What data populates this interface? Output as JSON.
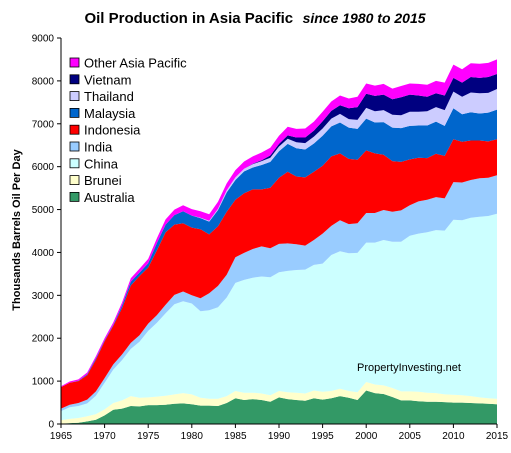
{
  "chart_data": {
    "type": "area",
    "stacked": true,
    "title": "Oil Production in Asia Pacific",
    "subtitle": "since 1980 to 2015",
    "ylabel": "Thousands Barrels Oil Per Day",
    "xlabel": "",
    "watermark": "PropertyInvesting.net",
    "xlim": [
      1965,
      2015
    ],
    "ylim": [
      0,
      9000
    ],
    "x_ticks": [
      "1965",
      "1970",
      "1975",
      "1980",
      "1985",
      "1990",
      "1995",
      "2000",
      "2005",
      "2010",
      "2015"
    ],
    "y_ticks": [
      "0",
      "1000",
      "2000",
      "3000",
      "4000",
      "5000",
      "6000",
      "7000",
      "8000",
      "9000"
    ],
    "grid": false,
    "legend_position": "top-left",
    "x": [
      1965,
      1966,
      1967,
      1968,
      1969,
      1970,
      1971,
      1972,
      1973,
      1974,
      1975,
      1976,
      1977,
      1978,
      1979,
      1980,
      1981,
      1982,
      1983,
      1984,
      1985,
      1986,
      1987,
      1988,
      1989,
      1990,
      1991,
      1992,
      1993,
      1994,
      1995,
      1996,
      1997,
      1998,
      1999,
      2000,
      2001,
      2002,
      2003,
      2004,
      2005,
      2006,
      2007,
      2008,
      2009,
      2010,
      2011,
      2012,
      2013,
      2014,
      2015
    ],
    "series": [
      {
        "name": "Australia",
        "color": "#339966",
        "values": [
          10,
          20,
          30,
          60,
          100,
          200,
          330,
          360,
          420,
          410,
          440,
          440,
          450,
          470,
          480,
          460,
          430,
          430,
          420,
          490,
          600,
          560,
          580,
          560,
          520,
          620,
          580,
          560,
          540,
          600,
          570,
          600,
          650,
          610,
          560,
          780,
          720,
          700,
          630,
          550,
          550,
          530,
          520,
          520,
          510,
          500,
          500,
          490,
          480,
          470,
          460
        ]
      },
      {
        "name": "Brunei",
        "color": "#ffffcc",
        "values": [
          80,
          100,
          110,
          120,
          130,
          140,
          160,
          190,
          230,
          200,
          180,
          200,
          210,
          220,
          240,
          230,
          180,
          160,
          170,
          160,
          170,
          170,
          150,
          150,
          150,
          150,
          160,
          170,
          170,
          180,
          180,
          170,
          170,
          160,
          180,
          200,
          200,
          200,
          210,
          210,
          210,
          220,
          210,
          200,
          180,
          180,
          170,
          160,
          140,
          130,
          130
        ]
      },
      {
        "name": "China",
        "color": "#ccffff",
        "values": [
          210,
          270,
          280,
          300,
          430,
          620,
          780,
          940,
          1100,
          1310,
          1550,
          1720,
          1920,
          2100,
          2140,
          2120,
          2020,
          2060,
          2130,
          2300,
          2520,
          2630,
          2680,
          2730,
          2750,
          2770,
          2830,
          2860,
          2890,
          2930,
          2990,
          3170,
          3210,
          3210,
          3250,
          3250,
          3310,
          3390,
          3410,
          3490,
          3630,
          3690,
          3740,
          3800,
          3820,
          4080,
          4080,
          4160,
          4210,
          4250,
          4310
        ]
      },
      {
        "name": "India",
        "color": "#99ccff",
        "values": [
          60,
          60,
          70,
          90,
          100,
          110,
          120,
          130,
          140,
          150,
          170,
          180,
          200,
          220,
          230,
          190,
          300,
          400,
          500,
          530,
          600,
          630,
          670,
          700,
          680,
          660,
          640,
          600,
          560,
          580,
          700,
          680,
          720,
          680,
          690,
          690,
          690,
          700,
          700,
          730,
          710,
          750,
          760,
          770,
          750,
          880,
          880,
          880,
          900,
          890,
          900
        ]
      },
      {
        "name": "Indonesia",
        "color": "#ff0000",
        "values": [
          500,
          510,
          510,
          570,
          740,
          860,
          900,
          1080,
          1340,
          1380,
          1310,
          1510,
          1690,
          1640,
          1590,
          1580,
          1610,
          1370,
          1390,
          1470,
          1340,
          1390,
          1390,
          1330,
          1410,
          1540,
          1670,
          1580,
          1590,
          1590,
          1580,
          1620,
          1560,
          1520,
          1480,
          1460,
          1390,
          1290,
          1180,
          1130,
          1070,
          1020,
          970,
          1010,
          990,
          1000,
          950,
          920,
          880,
          850,
          840
        ]
      },
      {
        "name": "Malaysia",
        "color": "#0066cc",
        "values": [
          0,
          0,
          10,
          20,
          30,
          20,
          20,
          60,
          90,
          80,
          100,
          170,
          180,
          220,
          280,
          280,
          260,
          300,
          380,
          450,
          460,
          510,
          510,
          570,
          600,
          620,
          650,
          660,
          650,
          660,
          700,
          700,
          720,
          730,
          720,
          740,
          720,
          760,
          780,
          790,
          780,
          750,
          760,
          750,
          700,
          720,
          640,
          660,
          630,
          670,
          690
        ]
      },
      {
        "name": "Thailand",
        "color": "#ccccff",
        "values": [
          0,
          0,
          0,
          0,
          0,
          0,
          0,
          0,
          0,
          0,
          0,
          0,
          0,
          0,
          0,
          0,
          10,
          20,
          30,
          50,
          60,
          60,
          80,
          90,
          100,
          110,
          120,
          140,
          150,
          160,
          170,
          180,
          200,
          200,
          210,
          250,
          260,
          280,
          300,
          300,
          330,
          320,
          330,
          340,
          370,
          390,
          410,
          460,
          470,
          460,
          480
        ]
      },
      {
        "name": "Vietnam",
        "color": "#000080",
        "values": [
          0,
          0,
          0,
          0,
          0,
          0,
          0,
          0,
          0,
          0,
          0,
          0,
          0,
          0,
          0,
          0,
          0,
          0,
          0,
          0,
          0,
          0,
          10,
          20,
          50,
          60,
          80,
          110,
          130,
          140,
          170,
          180,
          200,
          250,
          300,
          330,
          360,
          360,
          360,
          420,
          400,
          380,
          340,
          320,
          340,
          320,
          330,
          360,
          360,
          370,
          350
        ]
      },
      {
        "name": "Other Asia Pacific",
        "color": "#ff00ff",
        "values": [
          20,
          30,
          30,
          40,
          50,
          50,
          60,
          70,
          80,
          90,
          100,
          110,
          120,
          130,
          140,
          150,
          150,
          150,
          160,
          160,
          170,
          170,
          170,
          180,
          180,
          190,
          200,
          200,
          210,
          210,
          220,
          220,
          230,
          230,
          240,
          240,
          240,
          250,
          250,
          260,
          260,
          270,
          280,
          290,
          300,
          310,
          310,
          320,
          330,
          330,
          340
        ]
      }
    ]
  }
}
